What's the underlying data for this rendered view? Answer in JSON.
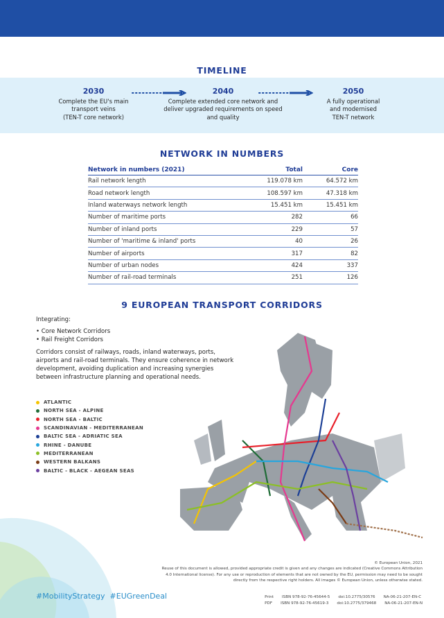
{
  "timeline": {
    "title": "TIMELINE",
    "items": [
      {
        "year": "2030",
        "lines": [
          "Complete the EU's main",
          "transport veins",
          "(TEN-T core network)"
        ]
      },
      {
        "year": "2040",
        "lines": [
          "Complete extended core network and",
          "deliver upgraded requirements on speed",
          "and quality"
        ]
      },
      {
        "year": "2050",
        "lines": [
          "A fully operational",
          "and modernised",
          "TEN-T network"
        ]
      }
    ]
  },
  "numbers": {
    "title": "NETWORK IN NUMBERS",
    "headers": [
      "Network in numbers (2021)",
      "Total",
      "Core"
    ],
    "rows": [
      [
        "Rail network length",
        "119.078 km",
        "64.572 km"
      ],
      [
        "Road network length",
        "108.597 km",
        "47.318 km"
      ],
      [
        "Inland waterways network length",
        "15.451 km",
        "15.451 km"
      ],
      [
        "Number of maritime ports",
        "282",
        "66"
      ],
      [
        "Number of inland ports",
        "229",
        "57"
      ],
      [
        "Number of 'maritime & inland' ports",
        "40",
        "26"
      ],
      [
        "Number of airports",
        "317",
        "82"
      ],
      [
        "Number of urban nodes",
        "424",
        "337"
      ],
      [
        "Number of rail-road terminals",
        "251",
        "126"
      ]
    ]
  },
  "corridors": {
    "title": "9 EUROPEAN TRANSPORT CORRIDORS",
    "integrating": "Integrating:",
    "bullets": [
      "Core Network Corridors",
      "Rail Freight Corridors"
    ],
    "description": "Corridors consist of railways, roads, inland waterways, ports, airports and rail-road terminals. They ensure coherence in network development, avoiding duplication and increasing synergies between infrastructure planning and operational needs.",
    "legend": [
      {
        "label": "ATLANTIC",
        "color": "#f5c400"
      },
      {
        "label": "NORTH SEA - ALPINE",
        "color": "#1e6b35"
      },
      {
        "label": "NORTH SEA - BALTIC",
        "color": "#e8202a"
      },
      {
        "label": "SCANDINAVIAN - MEDITERRANEAN",
        "color": "#e6388f"
      },
      {
        "label": "BALTIC SEA - ADRIATIC SEA",
        "color": "#1c3f95"
      },
      {
        "label": "RHINE - DANUBE",
        "color": "#27a6de"
      },
      {
        "label": "MEDITERRANEAN",
        "color": "#8cbf26"
      },
      {
        "label": "WESTERN BALKANS",
        "color": "#7a3b14"
      },
      {
        "label": "BALTIC - BLACK - AEGEAN SEAS",
        "color": "#6b3fa0"
      }
    ]
  },
  "hashtags": [
    "#MobilityStrategy",
    "#EUGreenDeal"
  ],
  "footer": {
    "copyright": "© European Union, 2021",
    "notice": "Reuse of this document is allowed, provided appropriate credit is given and any changes are indicated (Creative Commons Attribution 4.0 International license). For any use or reproduction of elements that are not owned by the EU, permission may need to be sought directly from the respective right holders. All images © European Union, unless otherwise stated.",
    "print": {
      "label": "Print",
      "isbn": "ISBN 978-92-76-45644-5",
      "doi": "doi:10.2775/30576",
      "cat": "NA-06-21-207-EN-C"
    },
    "pdf": {
      "label": "PDF",
      "isbn": "ISBN 978-92-76-45619-3",
      "doi": "doi:10.2775/379468",
      "cat": "NA-06-21-207-EN-N"
    }
  }
}
